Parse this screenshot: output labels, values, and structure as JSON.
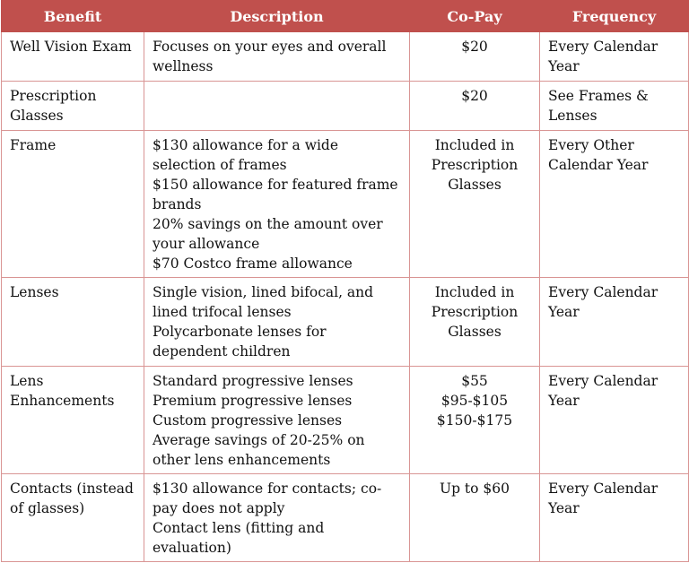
{
  "headers": [
    "Benefit",
    "Description",
    "Co-Pay",
    "Frequency"
  ],
  "rows": [
    {
      "benefit": "Well Vision Exam",
      "description": [
        "Focuses on your eyes and overall wellness"
      ],
      "copay": [
        "$20"
      ],
      "frequency": "Every Calendar Year"
    },
    {
      "benefit": "Prescription Glasses",
      "description": [],
      "copay": [
        "$20"
      ],
      "frequency": "See Frames & Lenses"
    },
    {
      "benefit": "Frame",
      "description": [
        "$130 allowance for a wide selection of frames",
        "$150 allowance for featured frame brands",
        "20% savings on the amount over your allowance",
        "$70 Costco frame allowance"
      ],
      "copay": [
        "Included in Prescription Glasses"
      ],
      "frequency": "Every Other Calendar Year"
    },
    {
      "benefit": "Lenses",
      "description": [
        "Single vision, lined bifocal, and lined trifocal lenses",
        "Polycarbonate lenses for dependent children"
      ],
      "copay": [
        "Included in Prescription Glasses"
      ],
      "frequency": "Every Calendar Year"
    },
    {
      "benefit": "Lens Enhancements",
      "description": [
        "Standard progressive lenses",
        "Premium progressive lenses",
        "Custom progressive lenses",
        "Average savings of 20-25% on other lens enhancements"
      ],
      "copay": [
        "$55",
        "$95-$105",
        "$150-$175"
      ],
      "frequency": "Every Calendar Year"
    },
    {
      "benefit": "Contacts (instead of glasses)",
      "description": [
        "$130 allowance for contacts; co-pay does not apply",
        "Contact lens (fitting and evaluation)"
      ],
      "copay": [
        "Up to $60"
      ],
      "frequency": "Every Calendar Year"
    }
  ],
  "colors": {
    "header": "#c0504d",
    "border": "#d99594"
  }
}
